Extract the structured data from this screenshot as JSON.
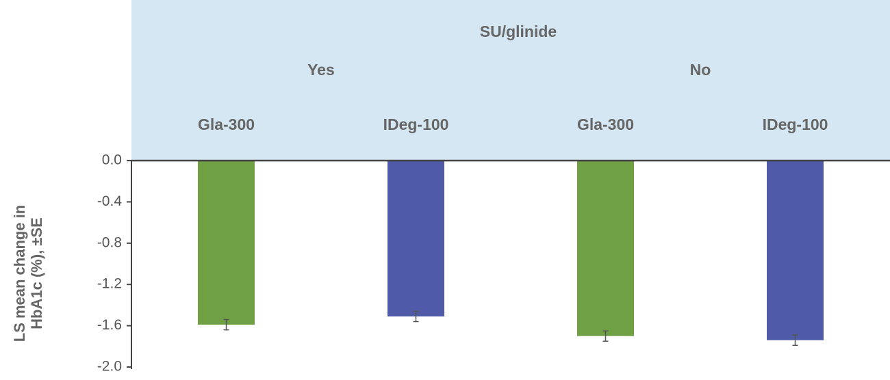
{
  "chart_data": {
    "type": "bar",
    "group_title": "SU/glinide",
    "groups": [
      "Yes",
      "No"
    ],
    "categories": [
      "Gla-300",
      "IDeg-100",
      "Gla-300",
      "IDeg-100"
    ],
    "values": [
      -1.59,
      -1.51,
      -1.7,
      -1.74
    ],
    "errors": [
      0.05,
      0.05,
      0.05,
      0.05
    ],
    "colors": [
      "#70a044",
      "#4f5ba8",
      "#70a044",
      "#4f5ba8"
    ],
    "ylabel": [
      "LS mean change in",
      "HbA1c (%), ±SE"
    ],
    "ylim": [
      -2.0,
      0
    ],
    "yticks": [
      {
        "value": 0,
        "label": "0.0"
      },
      -0.4,
      -0.8,
      -1.2,
      -1.6,
      {
        "value": -2.0,
        "label": "-2.0"
      }
    ]
  }
}
